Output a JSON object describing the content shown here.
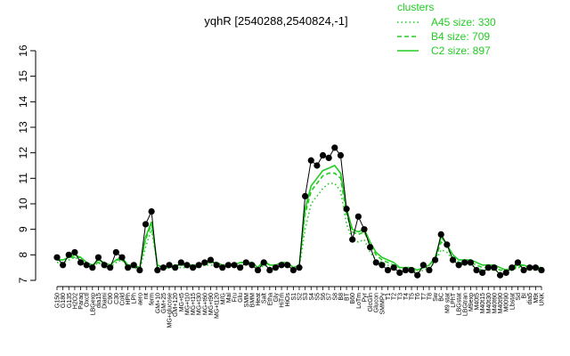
{
  "chart_data": {
    "type": "line",
    "title": "yqhR [2540288,2540824,-1]",
    "xlabel": "",
    "ylabel": "",
    "ylim": [
      7,
      16
    ],
    "yticks": [
      7,
      8,
      9,
      10,
      11,
      12,
      13,
      14,
      15,
      16
    ],
    "grid": false,
    "legend_position": "top-right",
    "legend_title": "clusters",
    "categories": [
      "G150",
      "G180",
      "G135",
      "H2O2",
      "Paraq",
      "Oxctl",
      "LBGexp",
      "dia15",
      "Diami",
      "C90",
      "C30",
      "Cold",
      "HPh",
      "LPh",
      "aero",
      "nit",
      "ferm",
      "GM+10",
      "GM+25",
      "MG+glucose",
      "GM+120",
      "MG+t5",
      "MG+t10",
      "MG+t15",
      "MG+t30",
      "MG+t60",
      "MG+t90",
      "MG+t120",
      "M/G",
      "Mal",
      "Fru",
      "Glu",
      "SMM",
      "BMM",
      "Heat",
      "Salt",
      "Etha",
      "Gly",
      "HiTm",
      "HiOs",
      "S1",
      "S2",
      "S3",
      "S4",
      "S5",
      "S6",
      "S7",
      "S8",
      "B8",
      "BT",
      "B60",
      "LoTm",
      "Pyr",
      "GlcGln",
      "Glucon",
      "SMMPy",
      "T1",
      "T2",
      "T3",
      "T4",
      "T5",
      "T6",
      "T7",
      "T8",
      "Sw",
      "BC",
      "M9 stat",
      "LPhT",
      "LBGstat",
      "LBGtran",
      "M9exp",
      "M40t5",
      "M40t15",
      "M40t30",
      "M40t60",
      "M40t90",
      "M0090",
      "Lbstat",
      "Sd",
      "BI",
      "dia5",
      "M9t",
      "UNK"
    ],
    "tick_labels": [
      "G150",
      "G180",
      "G135",
      "H2O2",
      "Paraq",
      "Oxctl",
      "LBGexp",
      "dia15",
      "Diami",
      "C90",
      "C30",
      "Cold",
      "HPh",
      "LPh",
      "aero",
      "nit",
      "ferm",
      "GM+10",
      "GM+25",
      "MG+glucose",
      "GM+120",
      "MG+t5",
      "MG+t10",
      "MG+t15",
      "MG+t30",
      "MG+t60",
      "MG+t90",
      "MG+t120",
      "M/G",
      "Mal",
      "Fru",
      "Glu",
      "SMM",
      "BMM",
      "Heat",
      "Salt",
      "Etha",
      "Gly",
      "HiTm",
      "HiOs",
      "S1",
      "S2",
      "S3",
      "S4",
      "S5",
      "S6",
      "S7",
      "S8",
      "B8",
      "BT",
      "B60",
      "LoTm",
      "Pyr",
      "GlcGln",
      "Glucon",
      "SMMPy",
      "T1",
      "T2",
      "T3",
      "T4",
      "T5",
      "T6",
      "T7",
      "T8",
      "Sw",
      "BC",
      "M9 stat",
      "LPhT",
      "LBGstat",
      "LBGtran",
      "M9exp",
      "M40t5",
      "M40t15",
      "M40t30",
      "M40t60",
      "M40t90",
      "M0090",
      "Lbstat",
      "Sd",
      "BI",
      "dia5",
      "M9t",
      "UNK"
    ],
    "series": [
      {
        "name": "A45 size: 330",
        "style": "dotted",
        "color": "#22cc22",
        "values": [
          7.7,
          7.7,
          7.8,
          7.9,
          7.8,
          7.6,
          7.5,
          7.7,
          7.5,
          7.5,
          7.7,
          7.8,
          7.5,
          7.5,
          7.4,
          8.3,
          9.0,
          7.6,
          7.4,
          7.5,
          7.5,
          7.5,
          7.5,
          7.5,
          7.5,
          7.6,
          7.6,
          7.6,
          7.5,
          7.6,
          7.5,
          7.6,
          7.6,
          7.6,
          7.4,
          7.6,
          7.5,
          7.5,
          7.6,
          7.6,
          7.4,
          7.5,
          9.0,
          10.0,
          10.3,
          10.6,
          10.8,
          10.8,
          10.5,
          9.2,
          8.6,
          8.5,
          8.6,
          8.1,
          7.8,
          7.7,
          7.6,
          7.5,
          7.4,
          7.4,
          7.4,
          7.3,
          7.4,
          7.5,
          7.7,
          8.2,
          8.1,
          7.8,
          7.6,
          7.6,
          7.6,
          7.5,
          7.4,
          7.4,
          7.4,
          7.3,
          7.3,
          7.4,
          7.5,
          7.5,
          7.4,
          7.4,
          7.4
        ]
      },
      {
        "name": "B4 size: 709",
        "style": "dashed",
        "color": "#22cc22",
        "values": [
          7.8,
          7.8,
          7.9,
          7.9,
          7.9,
          7.7,
          7.6,
          7.7,
          7.6,
          7.6,
          7.8,
          7.8,
          7.6,
          7.6,
          7.5,
          8.6,
          9.2,
          7.6,
          7.5,
          7.5,
          7.6,
          7.6,
          7.6,
          7.6,
          7.6,
          7.7,
          7.7,
          7.7,
          7.6,
          7.6,
          7.6,
          7.7,
          7.7,
          7.7,
          7.5,
          7.7,
          7.6,
          7.6,
          7.7,
          7.7,
          7.5,
          7.6,
          9.6,
          10.5,
          10.8,
          11.1,
          11.2,
          11.2,
          11.0,
          9.6,
          8.9,
          8.8,
          8.9,
          8.4,
          8.0,
          7.8,
          7.7,
          7.6,
          7.5,
          7.5,
          7.5,
          7.4,
          7.5,
          7.6,
          7.8,
          8.5,
          8.3,
          7.9,
          7.7,
          7.7,
          7.7,
          7.6,
          7.5,
          7.5,
          7.5,
          7.4,
          7.4,
          7.5,
          7.5,
          7.6,
          7.5,
          7.5,
          7.5
        ]
      },
      {
        "name": "C2 size: 897",
        "style": "solid",
        "color": "#22cc22",
        "values": [
          7.8,
          7.8,
          7.9,
          8.0,
          7.9,
          7.7,
          7.6,
          7.8,
          7.7,
          7.6,
          7.8,
          7.9,
          7.6,
          7.6,
          7.5,
          8.7,
          9.3,
          7.6,
          7.5,
          7.5,
          7.6,
          7.6,
          7.6,
          7.6,
          7.6,
          7.7,
          7.7,
          7.7,
          7.6,
          7.6,
          7.6,
          7.7,
          7.7,
          7.7,
          7.5,
          7.8,
          7.6,
          7.6,
          7.7,
          7.7,
          7.5,
          7.6,
          9.8,
          10.7,
          11.0,
          11.3,
          11.4,
          11.5,
          11.2,
          9.8,
          9.0,
          8.9,
          9.0,
          8.5,
          8.1,
          7.9,
          7.8,
          7.7,
          7.5,
          7.5,
          7.5,
          7.4,
          7.5,
          7.6,
          7.9,
          8.7,
          8.4,
          8.0,
          7.8,
          7.8,
          7.8,
          7.7,
          7.6,
          7.6,
          7.6,
          7.5,
          7.4,
          7.5,
          7.6,
          7.6,
          7.5,
          7.5,
          7.5
        ]
      },
      {
        "name": "",
        "style": "solid",
        "color": "#000000",
        "markers": true,
        "values": [
          7.9,
          7.6,
          8.0,
          8.1,
          7.7,
          7.6,
          7.5,
          7.9,
          7.6,
          7.5,
          8.1,
          7.9,
          7.5,
          7.6,
          7.4,
          9.2,
          9.7,
          7.4,
          7.5,
          7.6,
          7.5,
          7.7,
          7.6,
          7.5,
          7.6,
          7.7,
          7.8,
          7.6,
          7.5,
          7.6,
          7.6,
          7.5,
          7.7,
          7.6,
          7.4,
          7.7,
          7.4,
          7.5,
          7.6,
          7.6,
          7.4,
          7.5,
          10.3,
          11.7,
          11.5,
          11.9,
          11.8,
          12.2,
          11.9,
          9.8,
          8.6,
          9.5,
          9.0,
          8.3,
          7.7,
          7.6,
          7.4,
          7.5,
          7.3,
          7.4,
          7.4,
          7.2,
          7.6,
          7.4,
          7.8,
          8.8,
          8.4,
          7.8,
          7.6,
          7.7,
          7.7,
          7.4,
          7.3,
          7.5,
          7.5,
          7.2,
          7.3,
          7.5,
          7.7,
          7.4,
          7.5,
          7.5,
          7.4
        ]
      }
    ]
  }
}
